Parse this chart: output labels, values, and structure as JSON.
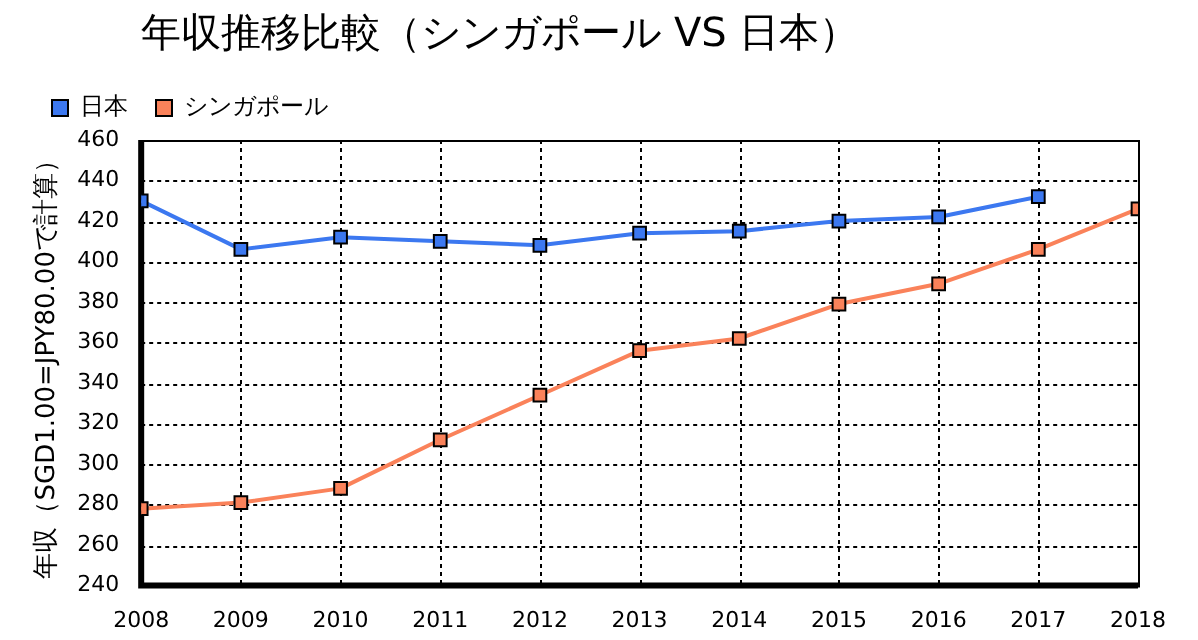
{
  "chart_data": {
    "type": "line",
    "title": "年収推移比較（シンガポール VS 日本）",
    "ylabel": "年収（SGD1.00=JPY80.00で計算）",
    "x": [
      2008,
      2009,
      2010,
      2011,
      2012,
      2013,
      2014,
      2015,
      2016,
      2017,
      2018
    ],
    "series": [
      {
        "name": "日本",
        "color": "#3c78f0",
        "values": [
          430,
          406,
          412,
          410,
          408,
          414,
          415,
          420,
          422,
          432,
          null
        ]
      },
      {
        "name": "シンガポール",
        "color": "#fa825a",
        "values": [
          278,
          281,
          288,
          312,
          334,
          356,
          362,
          379,
          389,
          406,
          426
        ]
      }
    ],
    "xlim": [
      2008,
      2018
    ],
    "xticks": [
      2008,
      2009,
      2010,
      2011,
      2012,
      2013,
      2014,
      2015,
      2016,
      2017,
      2018
    ],
    "ylim": [
      240,
      460
    ],
    "yticks": [
      240,
      260,
      280,
      300,
      320,
      340,
      360,
      380,
      400,
      420,
      440,
      460
    ],
    "grid": true,
    "legend": "top left",
    "marker": "square",
    "line_style": "solid"
  }
}
